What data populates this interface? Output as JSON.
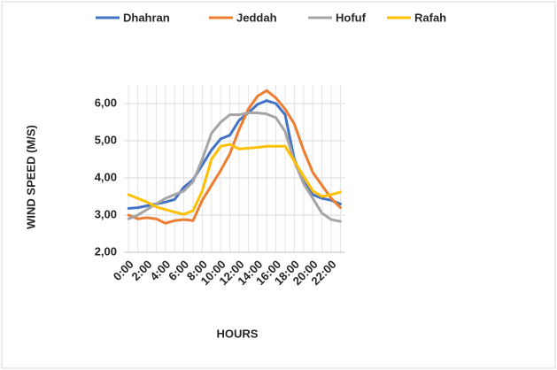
{
  "chart_data": {
    "type": "line",
    "categories": [
      "0:00",
      null,
      "2:00",
      null,
      "4:00",
      null,
      "6:00",
      null,
      "8:00",
      null,
      "10:00",
      null,
      "12:00",
      null,
      "14:00",
      null,
      "16:00",
      null,
      "18:00",
      null,
      "20:00",
      null,
      "22:00",
      null
    ],
    "series": [
      {
        "name": "Dhahran",
        "color": "#4472c4",
        "values": [
          3.18,
          3.2,
          3.25,
          3.3,
          3.35,
          3.42,
          3.75,
          3.95,
          4.35,
          4.75,
          5.05,
          5.15,
          5.55,
          5.75,
          5.98,
          6.08,
          6.0,
          5.7,
          4.5,
          3.9,
          3.55,
          3.45,
          3.4,
          3.3
        ]
      },
      {
        "name": "Jeddah",
        "color": "#ed7d31",
        "values": [
          3.0,
          2.9,
          2.93,
          2.9,
          2.78,
          2.85,
          2.88,
          2.85,
          3.4,
          3.8,
          4.2,
          4.65,
          5.3,
          5.85,
          6.2,
          6.35,
          6.15,
          5.85,
          5.45,
          4.75,
          4.15,
          3.8,
          3.45,
          3.2
        ]
      },
      {
        "name": "Hofuf",
        "color": "#a5a5a5",
        "values": [
          2.9,
          3.0,
          3.15,
          3.3,
          3.45,
          3.55,
          3.65,
          3.9,
          4.5,
          5.2,
          5.5,
          5.7,
          5.7,
          5.75,
          5.75,
          5.72,
          5.62,
          5.25,
          4.45,
          3.85,
          3.45,
          3.05,
          2.88,
          2.83
        ]
      },
      {
        "name": "Rafah",
        "color": "#ffc000",
        "values": [
          3.55,
          3.45,
          3.35,
          3.22,
          3.15,
          3.08,
          3.02,
          3.12,
          3.65,
          4.5,
          4.85,
          4.9,
          4.78,
          4.8,
          4.82,
          4.85,
          4.85,
          4.85,
          4.45,
          4.05,
          3.65,
          3.5,
          3.55,
          3.62
        ]
      }
    ],
    "y_label": "WIND SPEED (M/S)",
    "x_label": "HOURS",
    "ylim": [
      2,
      6.5
    ],
    "yticks": [
      {
        "value": 2,
        "label": "2,00"
      },
      {
        "value": 3,
        "label": "3,00"
      },
      {
        "value": 4,
        "label": "4,00"
      },
      {
        "value": 5,
        "label": "5,00"
      },
      {
        "value": 6,
        "label": "6,00"
      }
    ],
    "grid": true,
    "xgrid": true,
    "legend": "top"
  }
}
